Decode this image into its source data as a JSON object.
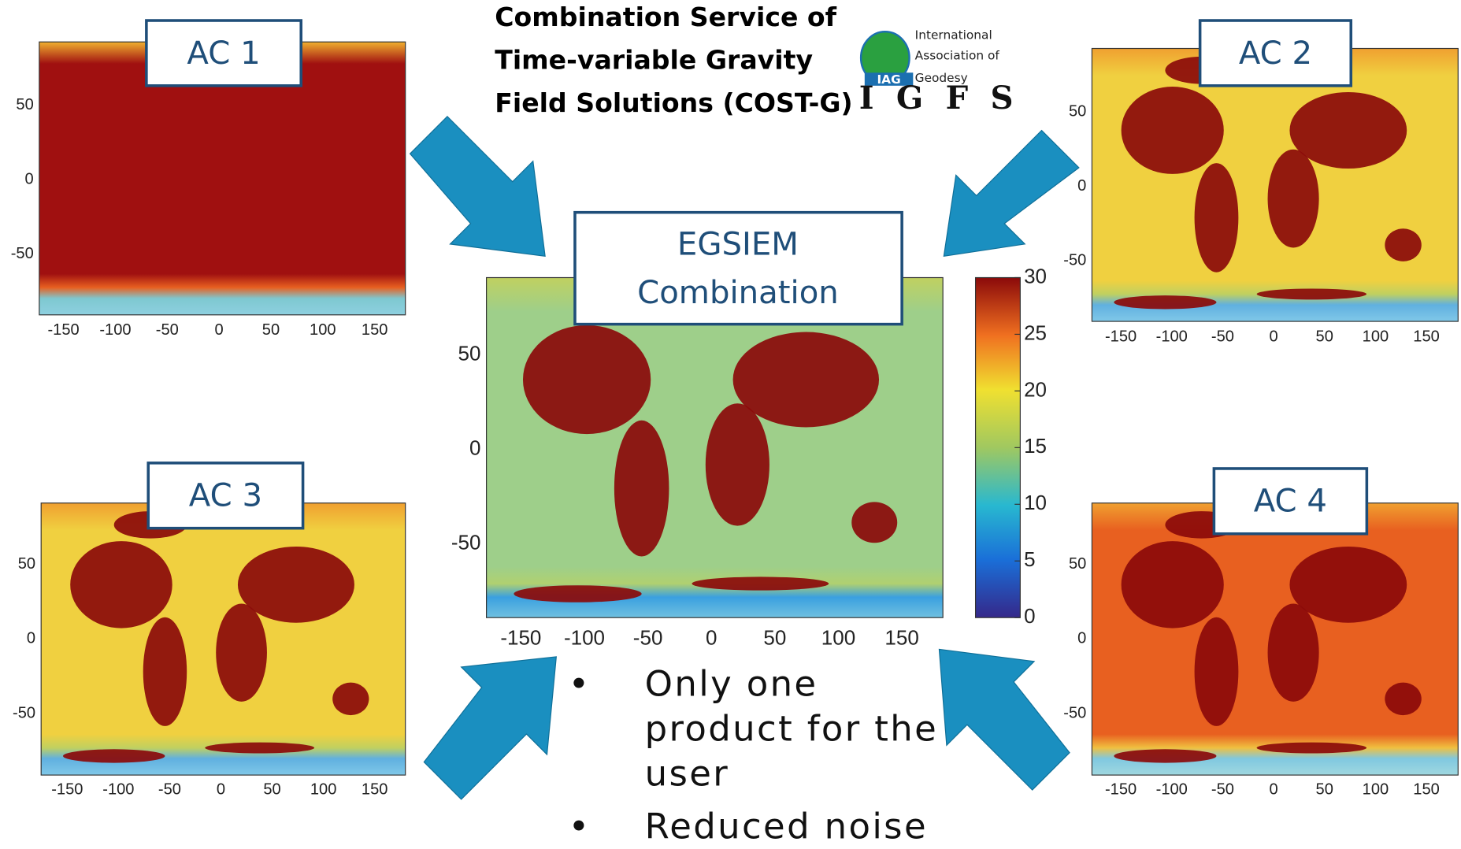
{
  "header": {
    "title_lines": [
      "Combination Service of",
      "Time-variable Gravity",
      "Field Solutions (COST-G)"
    ],
    "logo": {
      "lines": [
        "International",
        "Association of",
        "Geodesy"
      ],
      "badge": "IAG",
      "acronym": "IGFS"
    }
  },
  "maps": [
    {
      "label": "AC 1",
      "xticks": [
        -150,
        -100,
        -50,
        0,
        50,
        100,
        150
      ],
      "yticks": [
        50,
        0,
        -50
      ]
    },
    {
      "label": "AC 2",
      "xticks": [
        -150,
        -100,
        -50,
        0,
        50,
        100,
        150
      ],
      "yticks": [
        50,
        0,
        -50
      ]
    },
    {
      "label": "AC 3",
      "xticks": [
        -150,
        -100,
        -50,
        0,
        50,
        100,
        150
      ],
      "yticks": [
        50,
        0,
        -50
      ]
    },
    {
      "label": "AC 4",
      "xticks": [
        -150,
        -100,
        -50,
        0,
        50,
        100,
        150
      ],
      "yticks": [
        50,
        0,
        -50
      ]
    }
  ],
  "center": {
    "label_lines": [
      "EGSIEM",
      "Combination"
    ],
    "xticks": [
      -150,
      -100,
      -50,
      0,
      50,
      100,
      150
    ],
    "yticks": [
      50,
      0,
      -50
    ],
    "colorbar_ticks": [
      0,
      5,
      10,
      15,
      20,
      25,
      30
    ]
  },
  "bullets": [
    "Only one product for the user",
    "Reduced noise"
  ]
}
